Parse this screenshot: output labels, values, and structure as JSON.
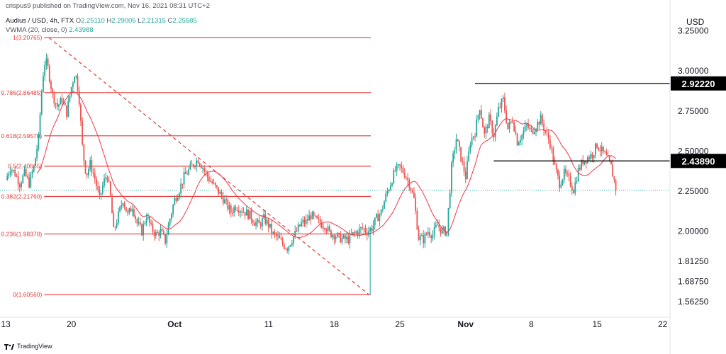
{
  "attribution": "crispus9 published on TradingView.com, Nov 16, 2021 08:31 UTC+2",
  "header": {
    "symbol": "Audius / USD, 4h, FTX",
    "ohlc": [
      {
        "key": "O",
        "value": "2.25110"
      },
      {
        "key": "H",
        "value": "2.29005"
      },
      {
        "key": "L",
        "value": "2.21315"
      },
      {
        "key": "C",
        "value": "2.25585"
      }
    ],
    "indicator": "VWMA (20, close, 0)",
    "indicator_value": "2.43988"
  },
  "footer": {
    "brand": "TradingView"
  },
  "colors": {
    "up": "#26a69a",
    "down": "#ef5350",
    "vwma": "#f23645",
    "fib": "#e53935",
    "level": "#000000",
    "grid": "#ebedf1",
    "last_price": "#26a69a"
  },
  "chart_data": {
    "type": "candlestick",
    "currency": "USD",
    "ylim": [
      1.5,
      3.31
    ],
    "yscale": "linear",
    "grid": false,
    "x_ticks": [
      {
        "label": "13",
        "day": 0
      },
      {
        "label": "20",
        "day": 7
      },
      {
        "label": "Oct",
        "day": 18
      },
      {
        "label": "11",
        "day": 28
      },
      {
        "label": "18",
        "day": 35
      },
      {
        "label": "25",
        "day": 42
      },
      {
        "label": "Nov",
        "day": 49
      },
      {
        "label": "8",
        "day": 56
      },
      {
        "label": "15",
        "day": 63
      },
      {
        "label": "22",
        "day": 70
      }
    ],
    "y_ticks": [
      "3.25000",
      "3.00000",
      "2.75000",
      "2.50000",
      "2.25000",
      "2.00000",
      "1.81250",
      "1.68750",
      "1.56250"
    ],
    "fibonacci": {
      "start_day": 4.1,
      "end_day": 38.9,
      "levels": [
        {
          "ratio": "1",
          "price": "3.20765"
        },
        {
          "ratio": "0.786",
          "price": "2.86485"
        },
        {
          "ratio": "0.618",
          "price": "2.59570"
        },
        {
          "ratio": "0.5",
          "price": "2.40665"
        },
        {
          "ratio": "0.382",
          "price": "2.21760"
        },
        {
          "ratio": "0.236",
          "price": "1.98370"
        },
        {
          "ratio": "0",
          "price": "1.60560"
        }
      ],
      "trend_line": {
        "from": [
          4.6,
          3.20765
        ],
        "to": [
          38.7,
          1.6056
        ]
      }
    },
    "levels": [
      {
        "price": "2.92220",
        "from_day": 50.0
      },
      {
        "price": "2.43890",
        "from_day": 52.0
      }
    ],
    "last_price": 2.25585,
    "anchors": [
      [
        0,
        2.32
      ],
      [
        0.5,
        2.4
      ],
      [
        1,
        2.36
      ],
      [
        1.5,
        2.3
      ],
      [
        2,
        2.36
      ],
      [
        2.5,
        2.3
      ],
      [
        3,
        2.4
      ],
      [
        3.5,
        2.58
      ],
      [
        3.8,
        2.85
      ],
      [
        4.1,
        3.05
      ],
      [
        4.4,
        3.05
      ],
      [
        5,
        2.85
      ],
      [
        5.5,
        2.78
      ],
      [
        6,
        2.82
      ],
      [
        6.5,
        2.74
      ],
      [
        7,
        2.9
      ],
      [
        7.4,
        3.0
      ],
      [
        7.8,
        2.85
      ],
      [
        8.2,
        2.5
      ],
      [
        8.6,
        2.35
      ],
      [
        9,
        2.42
      ],
      [
        9.5,
        2.33
      ],
      [
        10,
        2.2
      ],
      [
        10.4,
        2.3
      ],
      [
        10.8,
        2.36
      ],
      [
        11.2,
        2.2
      ],
      [
        11.5,
        2.0
      ],
      [
        12,
        2.1
      ],
      [
        12.5,
        2.2
      ],
      [
        13,
        2.1
      ],
      [
        13.5,
        2.16
      ],
      [
        14,
        2.05
      ],
      [
        14.5,
        2.0
      ],
      [
        15,
        2.1
      ],
      [
        15.5,
        2.02
      ],
      [
        16,
        1.98
      ],
      [
        16.5,
        2.0
      ],
      [
        17,
        1.94
      ],
      [
        17.5,
        2.08
      ],
      [
        18,
        2.2
      ],
      [
        18.5,
        2.26
      ],
      [
        19,
        2.34
      ],
      [
        19.5,
        2.38
      ],
      [
        20,
        2.42
      ],
      [
        20.5,
        2.45
      ],
      [
        21,
        2.4
      ],
      [
        21.5,
        2.34
      ],
      [
        22,
        2.3
      ],
      [
        22.5,
        2.26
      ],
      [
        23,
        2.22
      ],
      [
        23.5,
        2.17
      ],
      [
        24,
        2.12
      ],
      [
        24.5,
        2.16
      ],
      [
        25,
        2.14
      ],
      [
        25.5,
        2.12
      ],
      [
        26,
        2.1
      ],
      [
        26.5,
        2.06
      ],
      [
        27,
        2.04
      ],
      [
        27.5,
        2.08
      ],
      [
        28,
        2.04
      ],
      [
        28.5,
        1.98
      ],
      [
        29,
        1.96
      ],
      [
        29.5,
        1.92
      ],
      [
        30,
        1.9
      ],
      [
        30.5,
        1.95
      ],
      [
        31,
        2.0
      ],
      [
        31.5,
        2.05
      ],
      [
        32,
        2.06
      ],
      [
        32.5,
        2.1
      ],
      [
        33,
        2.07
      ],
      [
        33.5,
        2.05
      ],
      [
        34,
        2.04
      ],
      [
        34.5,
        1.99
      ],
      [
        35,
        1.98
      ],
      [
        35.5,
        1.96
      ],
      [
        36,
        1.95
      ],
      [
        36.5,
        1.95
      ],
      [
        37,
        1.98
      ],
      [
        37.5,
        2.0
      ],
      [
        38,
        2.02
      ],
      [
        38.5,
        2.0
      ],
      [
        39,
        2.02
      ],
      [
        39.5,
        2.08
      ],
      [
        40,
        2.12
      ],
      [
        40.5,
        2.22
      ],
      [
        41,
        2.3
      ],
      [
        41.5,
        2.38
      ],
      [
        42,
        2.4
      ],
      [
        42.5,
        2.36
      ],
      [
        43,
        2.3
      ],
      [
        43.5,
        2.2
      ],
      [
        44,
        1.96
      ],
      [
        44.5,
        1.95
      ],
      [
        45,
        2.0
      ],
      [
        45.5,
        1.98
      ],
      [
        46,
        2.04
      ],
      [
        46.5,
        2.0
      ],
      [
        47,
        2.0
      ],
      [
        47.5,
        2.4
      ],
      [
        48,
        2.58
      ],
      [
        48.5,
        2.46
      ],
      [
        49,
        2.34
      ],
      [
        49.5,
        2.56
      ],
      [
        50,
        2.62
      ],
      [
        50.5,
        2.78
      ],
      [
        51,
        2.6
      ],
      [
        51.5,
        2.7
      ],
      [
        52,
        2.6
      ],
      [
        52.5,
        2.76
      ],
      [
        53,
        2.82
      ],
      [
        53.5,
        2.64
      ],
      [
        54,
        2.7
      ],
      [
        54.5,
        2.56
      ],
      [
        55,
        2.6
      ],
      [
        55.5,
        2.66
      ],
      [
        56,
        2.62
      ],
      [
        56.5,
        2.66
      ],
      [
        57,
        2.7
      ],
      [
        57.5,
        2.62
      ],
      [
        58,
        2.55
      ],
      [
        58.5,
        2.4
      ],
      [
        59,
        2.3
      ],
      [
        59.5,
        2.36
      ],
      [
        60,
        2.32
      ],
      [
        60.5,
        2.26
      ],
      [
        61,
        2.38
      ],
      [
        61.5,
        2.44
      ],
      [
        62,
        2.46
      ],
      [
        62.5,
        2.48
      ],
      [
        63,
        2.54
      ],
      [
        63.5,
        2.5
      ],
      [
        64,
        2.46
      ],
      [
        64.5,
        2.4
      ],
      [
        65,
        2.27
      ]
    ]
  }
}
